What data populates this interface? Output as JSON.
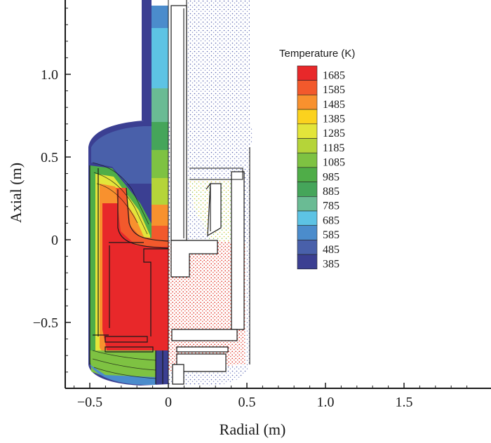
{
  "chart_data": {
    "type": "heatmap",
    "xlabel": "Radial (m)",
    "ylabel": "Axial (m)",
    "xlim": [
      -0.62,
      1.97
    ],
    "ylim": [
      -0.91,
      1.45
    ],
    "x_ticks": [
      -0.5,
      0,
      0.5,
      1.0,
      1.5
    ],
    "x_tick_labels": [
      "−0.5",
      "0",
      "0.5",
      "1.0",
      "1.5"
    ],
    "y_ticks": [
      1.0,
      0.5,
      0,
      -0.5
    ],
    "y_tick_labels": [
      "1.0",
      "0.5",
      "0",
      "−0.5"
    ],
    "legend": {
      "title": "Temperature (K)",
      "placement": "top-right",
      "levels": [
        {
          "value": 1685,
          "label": "1685",
          "color": "#e8282a"
        },
        {
          "value": 1585,
          "label": "1585",
          "color": "#f2592c"
        },
        {
          "value": 1485,
          "label": "1485",
          "color": "#f8912e"
        },
        {
          "value": 1385,
          "label": "1385",
          "color": "#fbd21e"
        },
        {
          "value": 1285,
          "label": "1285",
          "color": "#e3e53a"
        },
        {
          "value": 1185,
          "label": "1185",
          "color": "#b5d439"
        },
        {
          "value": 1085,
          "label": "1085",
          "color": "#7ec242"
        },
        {
          "value": 985,
          "label": "985",
          "color": "#4fad48"
        },
        {
          "value": 885,
          "label": "885",
          "color": "#45a55a"
        },
        {
          "value": 785,
          "label": "785",
          "color": "#6abb94"
        },
        {
          "value": 685,
          "label": "685",
          "color": "#5dc3e4"
        },
        {
          "value": 585,
          "label": "585",
          "color": "#4b8ccc"
        },
        {
          "value": 485,
          "label": "485",
          "color": "#4960aa"
        },
        {
          "value": 385,
          "label": "385",
          "color": "#3b3f92"
        }
      ]
    },
    "grid": false
  }
}
